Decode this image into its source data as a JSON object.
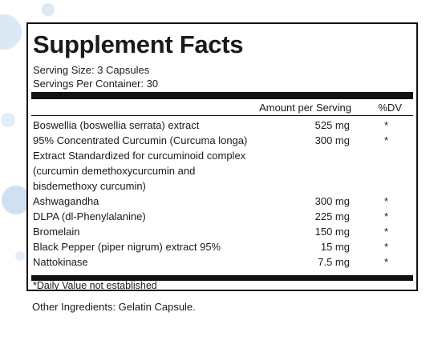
{
  "panel": {
    "title": "Supplement Facts",
    "serving_size": "Serving Size: 3 Capsules",
    "servings_per_container": "Servings Per Container: 30",
    "header": {
      "amount": "Amount per Serving",
      "dv": "%DV"
    },
    "rows": [
      {
        "name": "Boswellia (boswellia serrata) extract",
        "amount": "525 mg",
        "dv": "*"
      },
      {
        "name": "95% Concentrated Curcumin (Curcuma longa)",
        "amount": "300 mg",
        "dv": "*"
      },
      {
        "name": "Extract Standardized for curcuminoid complex"
      },
      {
        "name": "(curcumin demethoxycurcumin and"
      },
      {
        "name": "bisdemethoxy curcumin)"
      },
      {
        "name": "Ashwagandha",
        "amount": "300 mg",
        "dv": "*"
      },
      {
        "name": "DLPA (dl-Phenylalanine)",
        "amount": "225 mg",
        "dv": "*"
      },
      {
        "name": "Bromelain",
        "amount": "150 mg",
        "dv": "*"
      },
      {
        "name": "Black Pepper (piper nigrum) extract 95%",
        "amount": "15 mg",
        "dv": "*"
      },
      {
        "name": "Nattokinase",
        "amount": "7.5 mg",
        "dv": "*"
      }
    ],
    "footnote": "*Daily Value not established"
  },
  "other_ingredients": "Other Ingredients: Gelatin Capsule."
}
